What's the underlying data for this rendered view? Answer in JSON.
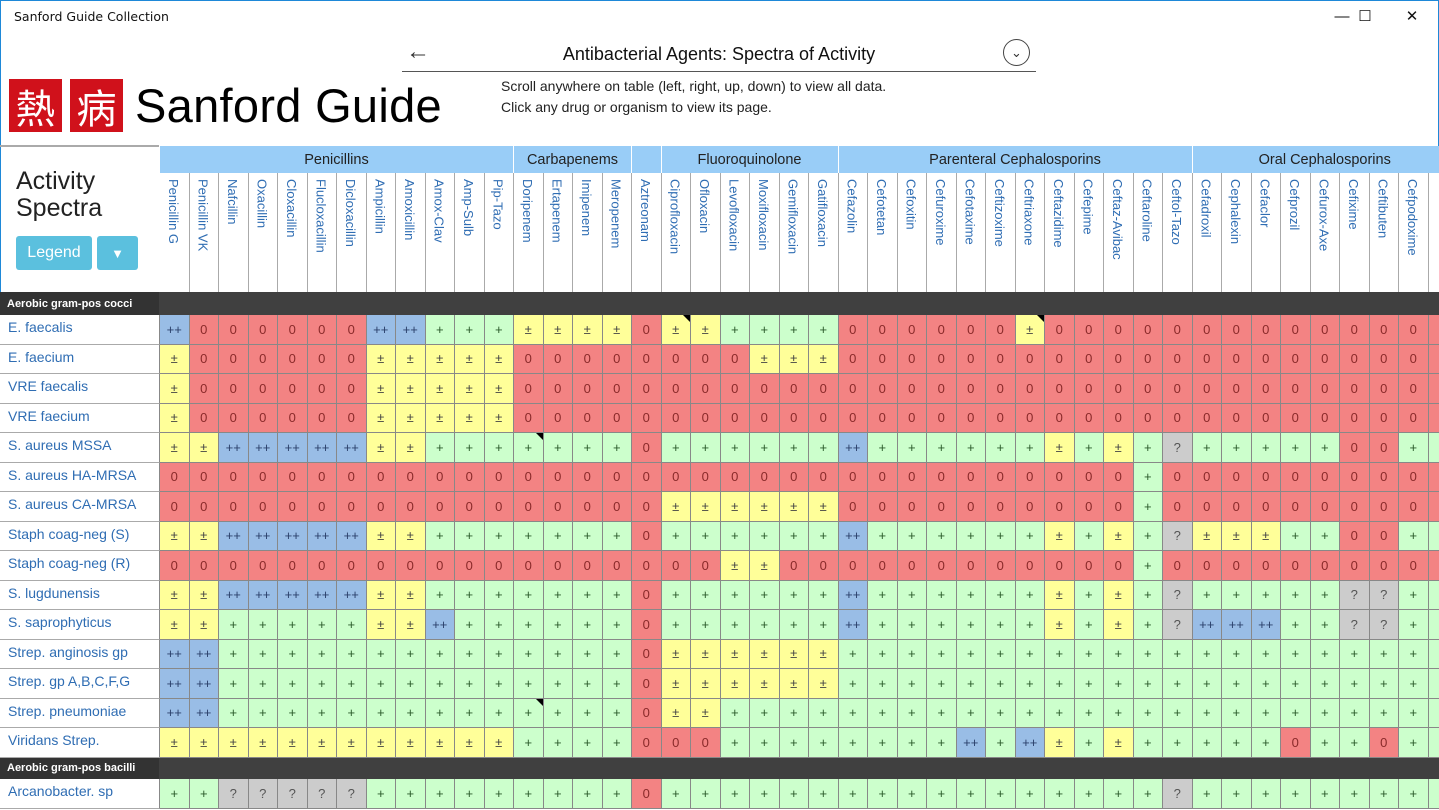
{
  "app_title": "Sanford Guide Collection",
  "window_controls": {
    "minimize": "—",
    "maximize": "☐",
    "close": "✕"
  },
  "logo": {
    "kanji1": "熱",
    "kanji2": "病",
    "text": "Sanford Guide"
  },
  "header": {
    "back_icon": "←",
    "title": "Antibacterial Agents: Spectra of Activity",
    "chevron_icon": "⌄",
    "instruction1": "Scroll anywhere on table (left, right, up, down) to view all data.",
    "instruction2": "Click any drug or organism to view its page."
  },
  "panel": {
    "title_line1": "Activity",
    "title_line2": "Spectra",
    "legend_label": "Legend",
    "filter_icon": "▼"
  },
  "colors": {
    "0": "#f38383",
    "±": "#ffff99",
    "+": "#ccffcc",
    "++": "#99bde6",
    "?": "#cccccc"
  },
  "groups": [
    {
      "label": "Penicillins",
      "span": 12
    },
    {
      "label": "Carbapenems",
      "span": 4
    },
    {
      "label": "",
      "span": 1
    },
    {
      "label": "Fluoroquinolone",
      "span": 6
    },
    {
      "label": "Parenteral Cephalosporins",
      "span": 12
    },
    {
      "label": "Oral Cephalosporins",
      "span": 9
    }
  ],
  "drugs": [
    "Penicillin G",
    "Penicillin VK",
    "Nafcillin",
    "Oxacillin",
    "Cloxacillin",
    "Flucloxacillin",
    "Dicloxacillin",
    "Ampicillin",
    "Amoxicillin",
    "Amox-Clav",
    "Amp-Sulb",
    "Pip-Tazo",
    "Doripenem",
    "Ertapenem",
    "Imipenem",
    "Meropenem",
    "Aztreonam",
    "Ciprofloxacin",
    "Ofloxacin",
    "Levofloxacin",
    "Moxifloxacin",
    "Gemifloxacin",
    "Gatifloxacin",
    "Cefazolin",
    "Cefotetan",
    "Cefoxitin",
    "Cefuroxime",
    "Cefotaxime",
    "Ceftizoxime",
    "Ceftriaxone",
    "Ceftazidime",
    "Cefepime",
    "Ceftaz-Avibac",
    "Ceftaroline",
    "Ceftol-Tazo",
    "Cefadroxil",
    "Cephalexin",
    "Cefaclor",
    "Cefprozil",
    "Cefurox-Axe",
    "Cefixime",
    "Ceftibuten",
    "Cefpodoxime"
  ],
  "sections": [
    {
      "label": "Aerobic gram-pos cocci",
      "rows": [
        {
          "organism": "E. faecalis",
          "values": "++ 0 0 0 0 0 0 ++ ++ + + + ± ± ± ± 0 ± ± + + + + 0 0 0 0 0 0 ± 0 0 0 0 0 0 0 0 0 0 0 0 0",
          "flags": [
            17,
            29
          ]
        },
        {
          "organism": "E. faecium",
          "values": "± 0 0 0 0 0 0 ± ± ± ± ± 0 0 0 0 0 0 0 0 ± ± ± 0 0 0 0 0 0 0 0 0 0 0 0 0 0 0 0 0 0 0 0",
          "flags": []
        },
        {
          "organism": "VRE faecalis",
          "values": "± 0 0 0 0 0 0 ± ± ± ± ± 0 0 0 0 0 0 0 0 0 0 0 0 0 0 0 0 0 0 0 0 0 0 0 0 0 0 0 0 0 0 0",
          "flags": []
        },
        {
          "organism": "VRE faecium",
          "values": "± 0 0 0 0 0 0 ± ± ± ± ± 0 0 0 0 0 0 0 0 0 0 0 0 0 0 0 0 0 0 0 0 0 0 0 0 0 0 0 0 0 0 0",
          "flags": []
        },
        {
          "organism": "S. aureus MSSA",
          "values": "± ± ++ ++ ++ ++ ++ ± ± + + + + + + + 0 + + + + + + ++ + + + + + + ± + ± + ? + + + + + 0 0 +",
          "flags": [
            12
          ]
        },
        {
          "organism": "S. aureus HA-MRSA",
          "values": "0 0 0 0 0 0 0 0 0 0 0 0 0 0 0 0 0 0 0 0 0 0 0 0 0 0 0 0 0 0 0 0 0 + 0 0 0 0 0 0 0 0 0",
          "flags": []
        },
        {
          "organism": "S. aureus CA-MRSA",
          "values": "0 0 0 0 0 0 0 0 0 0 0 0 0 0 0 0 0 ± ± ± ± ± ± 0 0 0 0 0 0 0 0 0 0 + 0 0 0 0 0 0 0 0 0",
          "flags": []
        },
        {
          "organism": "Staph coag-neg (S)",
          "values": "± ± ++ ++ ++ ++ ++ ± ± + + + + + + + 0 + + + + + + ++ + + + + + + ± + ± + ? ± ± ± + + 0 0 +",
          "flags": []
        },
        {
          "organism": "Staph coag-neg (R)",
          "values": "0 0 0 0 0 0 0 0 0 0 0 0 0 0 0 0 0 0 0 ± ± 0 0 0 0 0 0 0 0 0 0 0 0 + 0 0 0 0 0 0 0 0 0",
          "flags": []
        },
        {
          "organism": "S. lugdunensis",
          "values": "± ± ++ ++ ++ ++ ++ ± ± + + + + + + + 0 + + + + + + ++ + + + + + + ± + ± + ? + + + + + ? ? +",
          "flags": []
        },
        {
          "organism": "S. saprophyticus",
          "values": "± ± + + + + + ± ± ++ + + + + + + 0 + + + + + + ++ + + + + + + ± + ± + ? ++ ++ ++ + + ? ? +",
          "flags": []
        },
        {
          "organism": "Strep. anginosis gp",
          "values": "++ ++ + + + + + + + + + + + + + + 0 ± ± ± ± ± ± + + + + + + + + + + + + + + + + + + + +",
          "flags": []
        },
        {
          "organism": "Strep. gp A,B,C,F,G",
          "values": "++ ++ + + + + + + + + + + + + + + 0 ± ± ± ± ± ± + + + + + + + + + + + + + + + + + + + +",
          "flags": []
        },
        {
          "organism": "Strep. pneumoniae",
          "values": "++ ++ + + + + + + + + + + + + + + 0 ± ± + + + + + + + + + + + + + + + + + + + + + + + +",
          "flags": [
            12
          ]
        },
        {
          "organism": "Viridans Strep.",
          "values": "± ± ± ± ± ± ± ± ± ± ± ± + + + + 0 0 0 + + + + + + + + ++ + ++ ± + ± + + + + + 0 + + 0 +",
          "flags": []
        }
      ]
    },
    {
      "label": "Aerobic gram-pos bacilli",
      "rows": [
        {
          "organism": "Arcanobacter. sp",
          "values": "+ + ? ? ? ? ? + + + + + + + + + 0 + + + + + + + + + + + + + + + + + ? + + + + + + + +",
          "flags": []
        }
      ]
    }
  ]
}
